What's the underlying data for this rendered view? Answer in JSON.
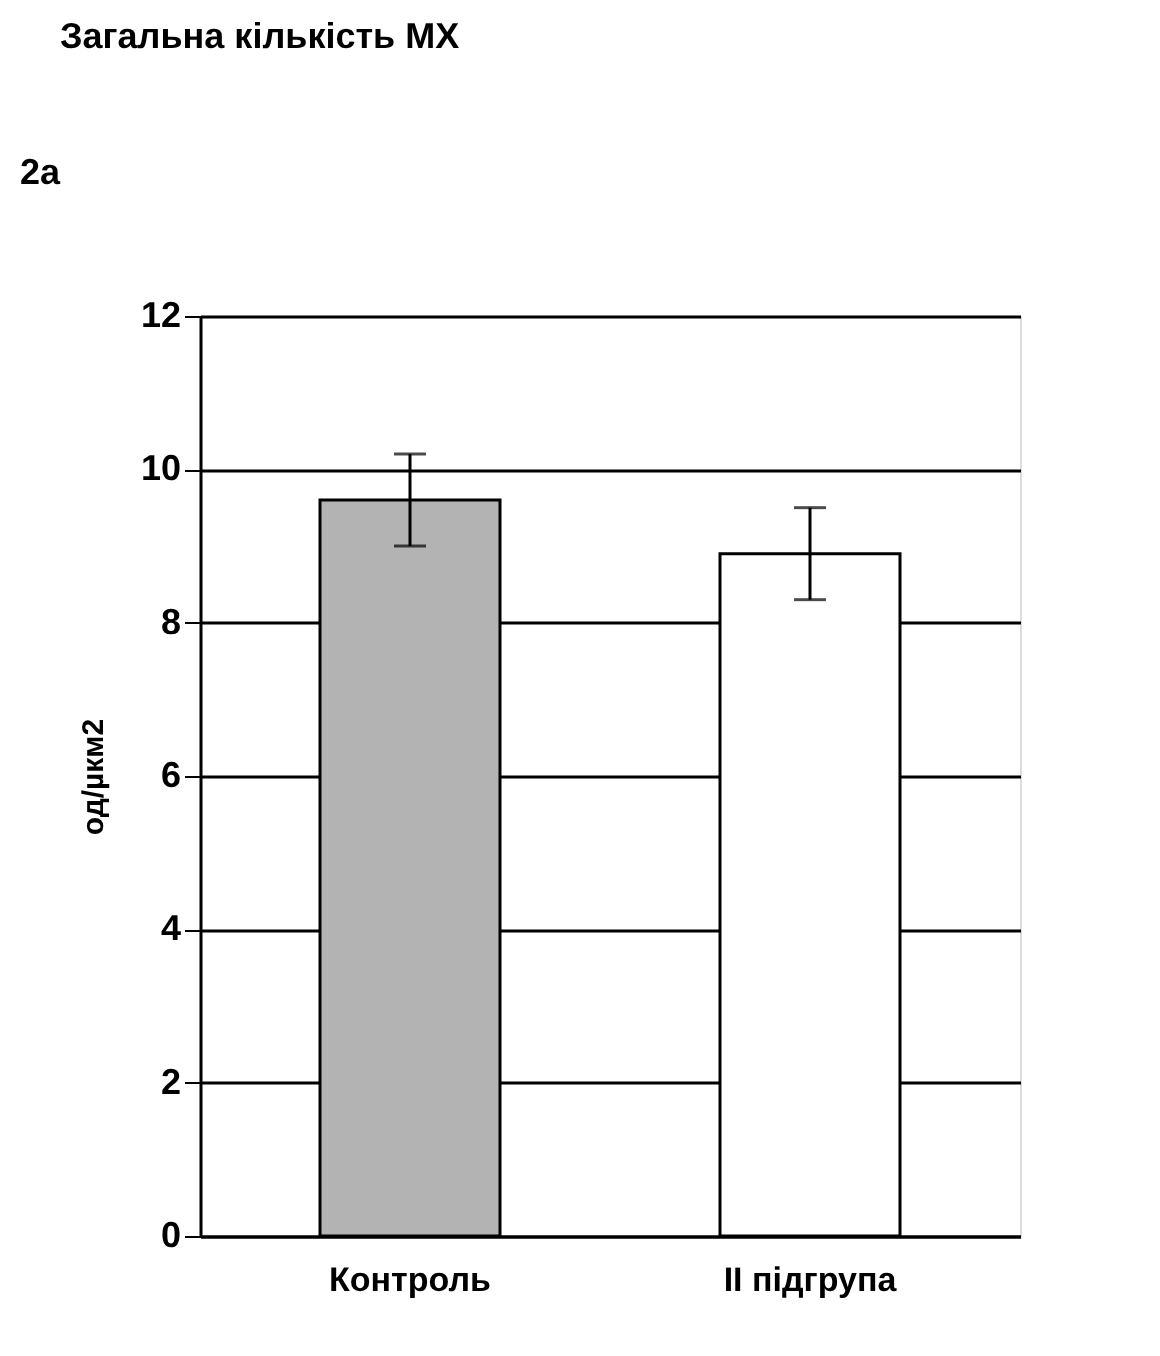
{
  "chart_data": {
    "type": "bar",
    "title": "Загальна кількість МХ",
    "ylabel": "од/µкм2",
    "annotations": [
      "2a"
    ],
    "categories": [
      "Контроль",
      "II підгрупа"
    ],
    "values": [
      9.6,
      8.9
    ],
    "errors": [
      0.6,
      0.6
    ],
    "colors": [
      "#b3b3b3",
      "#ffffff"
    ],
    "ylim": [
      0,
      12
    ],
    "yticks": [
      0,
      2,
      4,
      6,
      8,
      10,
      12
    ],
    "grid": "y"
  }
}
